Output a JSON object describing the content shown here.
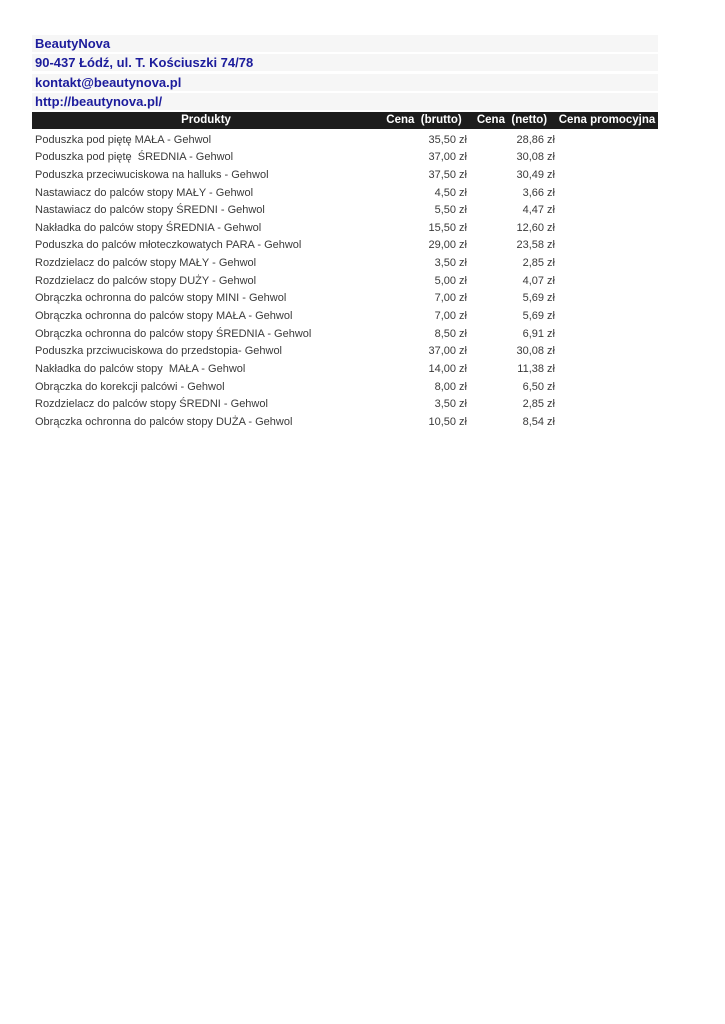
{
  "company": {
    "name": "BeautyNova",
    "address": "90-437 Łódź, ul. T. Kościuszki 74/78",
    "email": "kontakt@beautynova.pl",
    "website": "http://beautynova.pl/"
  },
  "table": {
    "headers": {
      "products": "Produkty",
      "gross": "Cena  (brutto)",
      "net": "Cena  (netto)",
      "promo": "Cena promocyjna"
    },
    "rows": [
      {
        "product": "Poduszka pod piętę MAŁA - Gehwol",
        "gross": "35,50 zł",
        "net": "28,86 zł",
        "promo": ""
      },
      {
        "product": "Poduszka pod piętę  ŚREDNIA - Gehwol",
        "gross": "37,00 zł",
        "net": "30,08 zł",
        "promo": ""
      },
      {
        "product": "Poduszka przeciwuciskowa na halluks - Gehwol",
        "gross": "37,50 zł",
        "net": "30,49 zł",
        "promo": ""
      },
      {
        "product": "Nastawiacz do palców stopy MAŁY - Gehwol",
        "gross": "4,50 zł",
        "net": "3,66 zł",
        "promo": ""
      },
      {
        "product": "Nastawiacz do palców stopy ŚREDNI - Gehwol",
        "gross": "5,50 zł",
        "net": "4,47 zł",
        "promo": ""
      },
      {
        "product": "Nakładka do palców stopy ŚREDNIA - Gehwol",
        "gross": "15,50 zł",
        "net": "12,60 zł",
        "promo": ""
      },
      {
        "product": "Poduszka do palców młoteczkowatych PARA - Gehwol",
        "gross": "29,00 zł",
        "net": "23,58 zł",
        "promo": ""
      },
      {
        "product": "Rozdzielacz do palców stopy MAŁY - Gehwol",
        "gross": "3,50 zł",
        "net": "2,85 zł",
        "promo": ""
      },
      {
        "product": "Rozdzielacz do palców stopy DUŻY - Gehwol",
        "gross": "5,00 zł",
        "net": "4,07 zł",
        "promo": ""
      },
      {
        "product": "Obrączka ochronna do palców stopy MINI - Gehwol",
        "gross": "7,00 zł",
        "net": "5,69 zł",
        "promo": ""
      },
      {
        "product": "Obrączka ochronna do palców stopy MAŁA - Gehwol",
        "gross": "7,00 zł",
        "net": "5,69 zł",
        "promo": ""
      },
      {
        "product": "Obrączka ochronna do palców stopy ŚREDNIA - Gehwol",
        "gross": "8,50 zł",
        "net": "6,91 zł",
        "promo": ""
      },
      {
        "product": "Poduszka przciwuciskowa do przedstopia- Gehwol",
        "gross": "37,00 zł",
        "net": "30,08 zł",
        "promo": ""
      },
      {
        "product": "Nakładka do palców stopy  MAŁA - Gehwol",
        "gross": "14,00 zł",
        "net": "11,38 zł",
        "promo": ""
      },
      {
        "product": "Obrączka do korekcji palcówi - Gehwol",
        "gross": "8,00 zł",
        "net": "6,50 zł",
        "promo": ""
      },
      {
        "product": "Rozdzielacz do palców stopy ŚREDNI - Gehwol",
        "gross": "3,50 zł",
        "net": "2,85 zł",
        "promo": ""
      },
      {
        "product": "Obrączka ochronna do palców stopy DUŻA - Gehwol",
        "gross": "10,50 zł",
        "net": "8,54 zł",
        "promo": ""
      }
    ]
  },
  "colors": {
    "company_text": "#1c1c9c",
    "company_line_bg": "#f6f6f6",
    "table_header_bg": "#1d1d1d",
    "table_header_text": "#ffffff",
    "row_text": "#3a3a3a"
  }
}
